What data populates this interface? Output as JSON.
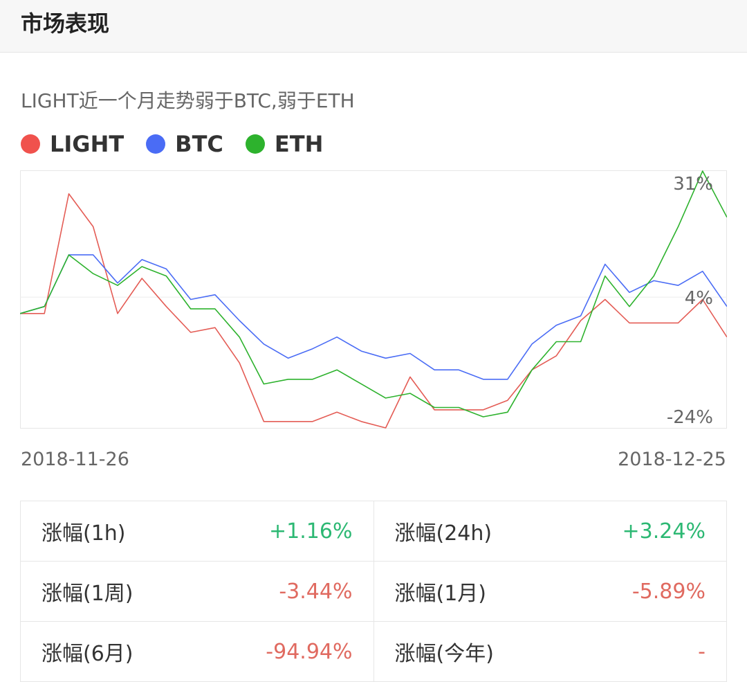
{
  "header": {
    "title": "市场表现"
  },
  "summary": "LIGHT近一个月走势弱于BTC,弱于ETH",
  "legend": [
    {
      "label": "LIGHT",
      "color": "#f0524d"
    },
    {
      "label": "BTC",
      "color": "#4a6cf5"
    },
    {
      "label": "ETH",
      "color": "#2db22d"
    }
  ],
  "chart_data": {
    "type": "line",
    "y_tick_labels": [
      "31%",
      "4%",
      "-24%"
    ],
    "ylim": [
      -24,
      31
    ],
    "y_ticks": [
      31,
      4,
      -24
    ],
    "x_start_label": "2018-11-26",
    "x_end_label": "2018-12-25",
    "grid": "horizontal line at 4%",
    "series": [
      {
        "name": "LIGHT",
        "color": "#e45c55",
        "values": [
          0.5,
          0.5,
          26,
          19,
          0.5,
          8,
          2,
          -3.5,
          -2.5,
          -10,
          -22.5,
          -22.5,
          -22.5,
          -20.5,
          -22.5,
          -26,
          -13,
          -20,
          -20,
          -20,
          -18,
          -11.5,
          -8.5,
          -1,
          3.5,
          -1.5,
          -1.5,
          -1.5,
          3.5,
          -4.5
        ]
      },
      {
        "name": "BTC",
        "color": "#4a6cf5",
        "values": [
          0.5,
          2,
          13,
          13,
          7,
          12,
          10,
          3.5,
          4.5,
          -1,
          -6,
          -9,
          -7,
          -4.5,
          -7.5,
          -9,
          -8,
          -11.5,
          -11.5,
          -13.5,
          -13.5,
          -6,
          -2,
          0,
          11,
          5,
          7.5,
          6.5,
          9.5,
          2
        ]
      },
      {
        "name": "ETH",
        "color": "#2db22d",
        "values": [
          0.5,
          2,
          13,
          9,
          6.5,
          10.5,
          8.5,
          1.5,
          1.5,
          -4.5,
          -14.5,
          -13.5,
          -13.5,
          -11.5,
          -14.5,
          -17.5,
          -16.5,
          -19.5,
          -19.5,
          -21.5,
          -20.5,
          -11.5,
          -5.5,
          -5.5,
          8.5,
          2,
          8.5,
          19,
          34,
          21
        ]
      }
    ]
  },
  "stats": [
    [
      {
        "label": "涨幅(1h)",
        "value": "+1.16%",
        "trend": "up"
      },
      {
        "label": "涨幅(24h)",
        "value": "+3.24%",
        "trend": "up"
      }
    ],
    [
      {
        "label": "涨幅(1周)",
        "value": "-3.44%",
        "trend": "down"
      },
      {
        "label": "涨幅(1月)",
        "value": "-5.89%",
        "trend": "down"
      }
    ],
    [
      {
        "label": "涨幅(6月)",
        "value": "-94.94%",
        "trend": "down"
      },
      {
        "label": "涨幅(今年)",
        "value": "-",
        "trend": "flat"
      }
    ]
  ]
}
